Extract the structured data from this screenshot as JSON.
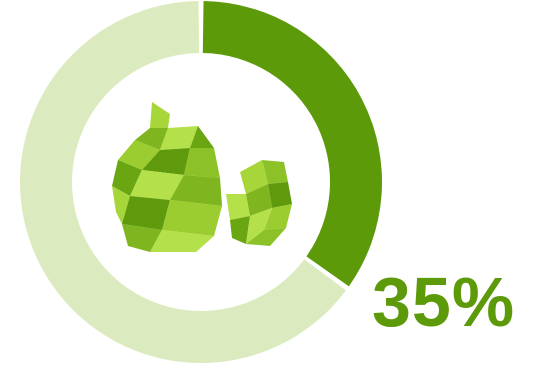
{
  "chart_data": {
    "type": "pie",
    "variant": "donut",
    "slices": [
      {
        "value": 35,
        "color": "#5c9a0a"
      },
      {
        "value": 65,
        "color": "#dcebbf"
      }
    ],
    "center_icon": "green-lowpoly-island-icon",
    "annotation": "35%",
    "legend": "none"
  }
}
